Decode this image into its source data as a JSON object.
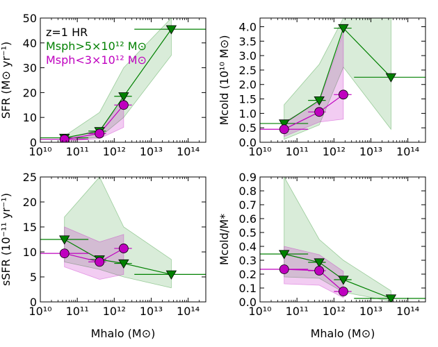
{
  "chart_data": [
    {
      "type": "line",
      "panel": "top-left",
      "xlabel": "",
      "ylabel": "SFR (M⊙ yr⁻¹)",
      "xscale": "log",
      "xlim": [
        10000000000.0,
        300000000000000.0
      ],
      "ylim": [
        0,
        50
      ],
      "xticks": [
        10,
        11,
        12,
        13,
        14
      ],
      "xtick_labels": [
        "10¹⁰",
        "10¹¹",
        "10¹²",
        "10¹³",
        "10¹⁴"
      ],
      "yticks": [
        0,
        10,
        20,
        30,
        40,
        50
      ],
      "ytick_labels": [
        "0",
        "10",
        "20",
        "30",
        "40",
        "50"
      ],
      "legend": {
        "placement": "top-left",
        "title": "z=1 HR",
        "entries": [
          {
            "label": "Msph>5×10¹² M⊙",
            "color": "#008000"
          },
          {
            "label": "Msph<3×10¹² M⊙",
            "color": "#bf00bf"
          }
        ]
      },
      "series": [
        {
          "name": "Msph>5×10¹² M⊙",
          "color": "#008000",
          "marker": "triangle-down",
          "x": [
            45000000000.0,
            400000000000.0,
            1800000000000.0,
            35000000000000.0
          ],
          "y": [
            1.8,
            4.5,
            18.5,
            45.5
          ],
          "xerr": [
            [
              10000000000.0,
              200000000000.0
            ],
            [
              200000000000.0,
              600000000000.0
            ],
            [
              1000000000000.0,
              3000000000000.0
            ],
            [
              3500000000000.0,
              300000000000000.0
            ]
          ],
          "band_upper": [
            2.5,
            12.0,
            30.0,
            50.0
          ],
          "band_lower": [
            1.0,
            2.0,
            10.0,
            35.0
          ]
        },
        {
          "name": "Msph<3×10¹² M⊙",
          "color": "#bf00bf",
          "marker": "circle",
          "x": [
            45000000000.0,
            400000000000.0,
            1800000000000.0
          ],
          "y": [
            1.2,
            3.5,
            15.0
          ],
          "xerr": [
            [
              10000000000.0,
              200000000000.0
            ],
            [
              200000000000.0,
              600000000000.0
            ],
            [
              1000000000000.0,
              3000000000000.0
            ]
          ],
          "band_upper": [
            1.5,
            5.0,
            17.0
          ],
          "band_lower": [
            0.3,
            1.5,
            6.0
          ]
        }
      ]
    },
    {
      "type": "line",
      "panel": "top-right",
      "xlabel": "",
      "ylabel": "Mcold (10¹⁰ M⊙)",
      "xscale": "log",
      "xlim": [
        10000000000.0,
        300000000000000.0
      ],
      "ylim": [
        0,
        4.3
      ],
      "xticks": [
        10,
        11,
        12,
        13,
        14
      ],
      "xtick_labels": [
        "10¹⁰",
        "10¹¹",
        "10¹²",
        "10¹³",
        "10¹⁴"
      ],
      "yticks": [
        0,
        0.5,
        1,
        1.5,
        2,
        2.5,
        3,
        3.5,
        4
      ],
      "ytick_labels": [
        "0.0",
        "0.5",
        "1.0",
        "1.5",
        "2.0",
        "2.5",
        "3.0",
        "3.5",
        "4.0"
      ],
      "series": [
        {
          "name": "Msph>5×10¹² M⊙",
          "color": "#008000",
          "marker": "triangle-down",
          "x": [
            45000000000.0,
            400000000000.0,
            1800000000000.0,
            35000000000000.0
          ],
          "y": [
            0.65,
            1.45,
            3.95,
            2.25
          ],
          "xerr": [
            [
              10000000000.0,
              200000000000.0
            ],
            [
              200000000000.0,
              600000000000.0
            ],
            [
              1000000000000.0,
              3000000000000.0
            ],
            [
              3500000000000.0,
              300000000000000.0
            ]
          ],
          "band_upper": [
            1.3,
            2.7,
            4.3,
            4.3
          ],
          "band_lower": [
            0.1,
            0.6,
            2.6,
            0.45
          ]
        },
        {
          "name": "Msph<3×10¹² M⊙",
          "color": "#bf00bf",
          "marker": "circle",
          "x": [
            45000000000.0,
            400000000000.0,
            1800000000000.0
          ],
          "y": [
            0.45,
            1.05,
            1.65
          ],
          "xerr": [
            [
              10000000000.0,
              200000000000.0
            ],
            [
              200000000000.0,
              600000000000.0
            ],
            [
              1000000000000.0,
              3000000000000.0
            ]
          ],
          "band_upper": [
            0.7,
            1.4,
            3.8
          ],
          "band_lower": [
            0.2,
            0.7,
            0.8
          ]
        }
      ]
    },
    {
      "type": "line",
      "panel": "bottom-left",
      "xlabel": "Mhalo (M⊙)",
      "ylabel": "sSFR (10⁻¹¹ yr⁻¹)",
      "xscale": "log",
      "xlim": [
        10000000000.0,
        300000000000000.0
      ],
      "ylim": [
        0,
        25
      ],
      "xticks": [
        10,
        11,
        12,
        13,
        14
      ],
      "xtick_labels": [
        "10¹⁰",
        "10¹¹",
        "10¹²",
        "10¹³",
        "10¹⁴"
      ],
      "yticks": [
        0,
        5,
        10,
        15,
        20,
        25
      ],
      "ytick_labels": [
        "0",
        "5",
        "10",
        "15",
        "20",
        "25"
      ],
      "series": [
        {
          "name": "Msph>5×10¹² M⊙",
          "color": "#008000",
          "marker": "triangle-down",
          "x": [
            45000000000.0,
            400000000000.0,
            1800000000000.0,
            35000000000000.0
          ],
          "y": [
            12.5,
            8.5,
            7.7,
            5.5
          ],
          "xerr": [
            [
              10000000000.0,
              200000000000.0
            ],
            [
              200000000000.0,
              600000000000.0
            ],
            [
              1000000000000.0,
              3000000000000.0
            ],
            [
              3500000000000.0,
              300000000000000.0
            ]
          ],
          "band_upper": [
            17.0,
            25.0,
            15.0,
            8.5
          ],
          "band_lower": [
            8.0,
            6.5,
            5.0,
            2.8
          ]
        },
        {
          "name": "Msph<3×10¹² M⊙",
          "color": "#bf00bf",
          "marker": "circle",
          "x": [
            45000000000.0,
            400000000000.0,
            1800000000000.0
          ],
          "y": [
            9.7,
            8.0,
            10.7
          ],
          "xerr": [
            [
              10000000000.0,
              200000000000.0
            ],
            [
              200000000000.0,
              600000000000.0
            ],
            [
              1000000000000.0,
              3000000000000.0
            ]
          ],
          "band_upper": [
            15.0,
            12.0,
            13.5
          ],
          "band_lower": [
            7.0,
            4.5,
            5.5
          ]
        }
      ]
    },
    {
      "type": "line",
      "panel": "bottom-right",
      "xlabel": "Mhalo (M⊙)",
      "ylabel": "Mcold/M*",
      "xscale": "log",
      "xlim": [
        10000000000.0,
        300000000000000.0
      ],
      "ylim": [
        0,
        0.9
      ],
      "xticks": [
        10,
        11,
        12,
        13,
        14
      ],
      "xtick_labels": [
        "10¹⁰",
        "10¹¹",
        "10¹²",
        "10¹³",
        "10¹⁴"
      ],
      "yticks": [
        0,
        0.1,
        0.2,
        0.3,
        0.4,
        0.5,
        0.6,
        0.7,
        0.8,
        0.9
      ],
      "ytick_labels": [
        "0.0",
        "0.1",
        "0.2",
        "0.3",
        "0.4",
        "0.5",
        "0.6",
        "0.7",
        "0.8",
        "0.9"
      ],
      "series": [
        {
          "name": "Msph>5×10¹² M⊙",
          "color": "#008000",
          "marker": "triangle-down",
          "x": [
            45000000000.0,
            400000000000.0,
            1800000000000.0,
            35000000000000.0
          ],
          "y": [
            0.345,
            0.285,
            0.16,
            0.025
          ],
          "xerr": [
            [
              10000000000.0,
              200000000000.0
            ],
            [
              200000000000.0,
              600000000000.0
            ],
            [
              1000000000000.0,
              3000000000000.0
            ],
            [
              3500000000000.0,
              300000000000000.0
            ]
          ],
          "band_upper": [
            0.9,
            0.45,
            0.3,
            0.08
          ],
          "band_lower": [
            0.18,
            0.17,
            0.07,
            0.005
          ]
        },
        {
          "name": "Msph<3×10¹² M⊙",
          "color": "#bf00bf",
          "marker": "circle",
          "x": [
            45000000000.0,
            400000000000.0,
            1800000000000.0
          ],
          "y": [
            0.235,
            0.225,
            0.075
          ],
          "xerr": [
            [
              10000000000.0,
              200000000000.0
            ],
            [
              200000000000.0,
              600000000000.0
            ],
            [
              1000000000000.0,
              3000000000000.0
            ]
          ],
          "band_upper": [
            0.4,
            0.34,
            0.22
          ],
          "band_lower": [
            0.13,
            0.12,
            0.03
          ]
        }
      ]
    }
  ]
}
